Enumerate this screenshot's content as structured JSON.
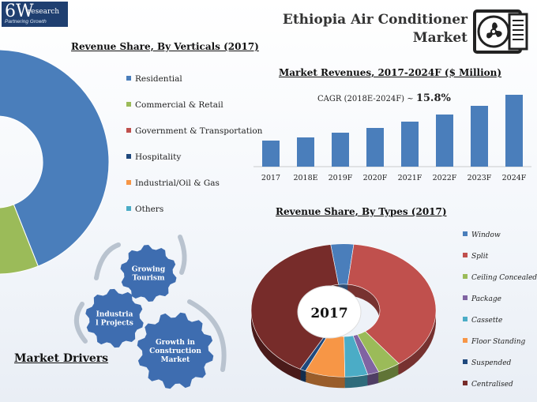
{
  "header": {
    "logo_main": "6W",
    "logo_sub": "research",
    "logo_tagline": "Partnering Growth",
    "title_line1": "Ethiopia Air Conditioner",
    "title_line2": "Market",
    "icon": "air-conditioner-icon"
  },
  "market_drivers": {
    "title": "Market Drivers",
    "gears": [
      "Growing Tourism",
      "Industrial Projects",
      "Growth in Construction Market"
    ],
    "gear_lines": [
      [
        "Growing",
        "Tourism"
      ],
      [
        "Industria",
        "l Projects"
      ],
      [
        "Growth in",
        "Construction",
        "Market"
      ]
    ],
    "gear_color": "#3e6db0"
  },
  "chart_data": [
    {
      "type": "pie",
      "title": "Revenue Share, By Verticals (2017)",
      "categories": [
        "Residential",
        "Commercial & Retail",
        "Government & Transportation",
        "Hospitality",
        "Industrial/Oil & Gas",
        "Others"
      ],
      "values": [
        44,
        22,
        10,
        9,
        6,
        9
      ],
      "colors": [
        "#4a7ebb",
        "#9bbb59",
        "#c0504d",
        "#1f497d",
        "#f79646",
        "#4bacc6"
      ],
      "legend": "right"
    },
    {
      "type": "bar",
      "title": "Market Revenues, 2017-2024F ($ Million)",
      "categories": [
        "2017",
        "2018E",
        "2019F",
        "2020F",
        "2021F",
        "2022F",
        "2023F",
        "2024F"
      ],
      "values": [
        33,
        37,
        43,
        49,
        57,
        66,
        77,
        91
      ],
      "ylim": [
        0,
        100
      ],
      "annotation_label": "CAGR (2018E-2024F) ~",
      "annotation_value": "15.8%",
      "color": "#4a7ebb",
      "grid": false
    },
    {
      "type": "pie",
      "title": "Revenue Share, By Types (2017)",
      "center_label": "2017",
      "categories": [
        "Window",
        "Split",
        "Ceiling Concealed",
        "Package",
        "Cassette",
        "Floor Standing",
        "Suspended",
        "Centralised"
      ],
      "values": [
        4,
        38,
        4,
        2,
        4,
        7,
        1,
        40
      ],
      "colors": [
        "#4a7ebb",
        "#c0504d",
        "#9bbb59",
        "#8064a2",
        "#4bacc6",
        "#f79646",
        "#1f497d",
        "#772c2a"
      ],
      "legend": "right"
    }
  ]
}
